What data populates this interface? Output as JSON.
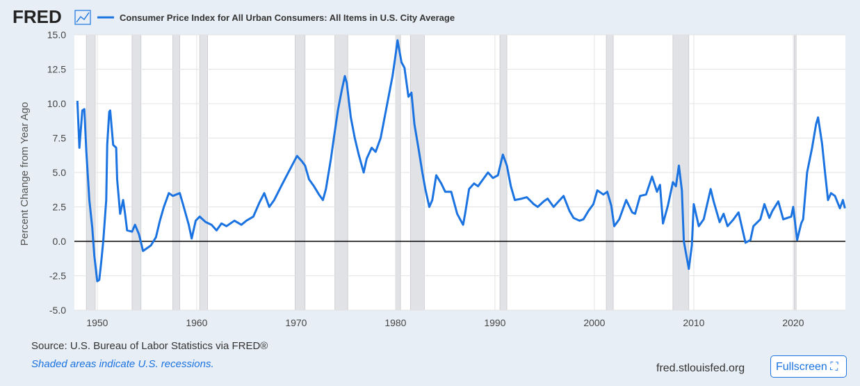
{
  "chart_data": {
    "type": "line",
    "brand": "FRED",
    "title": "Consumer Price Index for All Urban Consumers: All Items in U.S. City Average",
    "y_label": "Percent Change from Year Ago",
    "source": "Source: U.S. Bureau of Labor Statistics via FRED®",
    "note": "Shaded areas indicate U.S. recessions.",
    "site": "fred.stlouisfed.org",
    "button": "Fullscreen",
    "grid": true,
    "xlim": [
      1947.7,
      2025.25
    ],
    "ylim": [
      -5,
      15
    ],
    "xticks": [
      1950,
      1960,
      1970,
      1980,
      1990,
      2000,
      2010,
      2020
    ],
    "yticks": [
      {
        "value": -5,
        "label": "-5.0"
      },
      {
        "value": -2.5,
        "label": "-2.5"
      },
      {
        "value": 0,
        "label": "0.0"
      },
      {
        "value": 2.5,
        "label": "2.5"
      },
      {
        "value": 5,
        "label": "5.0"
      },
      {
        "value": 7.5,
        "label": "7.5"
      },
      {
        "value": 10,
        "label": "10.0"
      },
      {
        "value": 12.5,
        "label": "12.5"
      },
      {
        "value": 15,
        "label": "15.0"
      }
    ],
    "recessions": [
      [
        1948.9,
        1949.8
      ],
      [
        1953.5,
        1954.4
      ],
      [
        1957.6,
        1958.3
      ],
      [
        1960.3,
        1961.1
      ],
      [
        1969.9,
        1970.9
      ],
      [
        1973.9,
        1975.2
      ],
      [
        1980.0,
        1980.5
      ],
      [
        1981.5,
        1982.9
      ],
      [
        1990.5,
        1991.2
      ],
      [
        2001.2,
        2001.9
      ],
      [
        2007.9,
        2009.5
      ],
      [
        2020.1,
        2020.3
      ]
    ],
    "x": [
      1948.0,
      1948.2,
      1948.5,
      1948.7,
      1948.9,
      1949.2,
      1949.5,
      1949.7,
      1950.0,
      1950.2,
      1950.4,
      1950.6,
      1950.9,
      1951.0,
      1951.2,
      1951.3,
      1951.6,
      1951.9,
      1952.0,
      1952.3,
      1952.6,
      1952.8,
      1953.0,
      1953.5,
      1953.8,
      1954.2,
      1954.6,
      1955.0,
      1955.4,
      1955.9,
      1956.3,
      1956.7,
      1957.2,
      1957.6,
      1958.3,
      1958.7,
      1959.2,
      1959.5,
      1959.9,
      1960.3,
      1960.9,
      1961.5,
      1962.0,
      1962.5,
      1963.0,
      1963.8,
      1964.5,
      1965.0,
      1965.7,
      1966.3,
      1966.8,
      1967.3,
      1967.8,
      1968.5,
      1969.0,
      1969.8,
      1970.1,
      1970.6,
      1970.9,
      1971.3,
      1971.8,
      1972.3,
      1972.7,
      1973.0,
      1973.5,
      1973.8,
      1974.2,
      1974.6,
      1974.9,
      1975.1,
      1975.5,
      1975.9,
      1976.3,
      1976.8,
      1977.1,
      1977.6,
      1978.0,
      1978.5,
      1978.9,
      1979.3,
      1979.7,
      1980.0,
      1980.2,
      1980.6,
      1980.9,
      1981.3,
      1981.6,
      1981.9,
      1982.3,
      1982.7,
      1983.0,
      1983.4,
      1983.7,
      1984.1,
      1984.6,
      1985.0,
      1985.6,
      1986.2,
      1986.8,
      1987.0,
      1987.4,
      1987.9,
      1988.3,
      1988.9,
      1989.3,
      1989.8,
      1990.3,
      1990.8,
      1991.2,
      1991.6,
      1992.0,
      1992.7,
      1993.2,
      1993.9,
      1994.3,
      1994.9,
      1995.3,
      1995.9,
      1996.4,
      1996.9,
      1997.5,
      1997.9,
      1998.5,
      1998.9,
      1999.4,
      1999.9,
      2000.3,
      2000.9,
      2001.3,
      2001.7,
      2002.0,
      2002.5,
      2002.9,
      2003.2,
      2003.8,
      2004.1,
      2004.6,
      2005.2,
      2005.8,
      2006.3,
      2006.6,
      2006.9,
      2007.4,
      2007.9,
      2008.2,
      2008.5,
      2008.8,
      2009.0,
      2009.5,
      2009.8,
      2010.0,
      2010.5,
      2011.0,
      2011.7,
      2012.0,
      2012.6,
      2013.0,
      2013.4,
      2014.0,
      2014.5,
      2015.2,
      2015.7,
      2016.0,
      2016.7,
      2017.1,
      2017.6,
      2017.9,
      2018.5,
      2019.0,
      2019.8,
      2020.0,
      2020.4,
      2020.8,
      2021.0,
      2021.4,
      2021.9,
      2022.3,
      2022.5,
      2022.9,
      2023.2,
      2023.5,
      2023.8,
      2024.2,
      2024.7,
      2025.0,
      2025.2
    ],
    "series": [
      {
        "name": "Consumer Price Index for All Urban Consumers: All Items in U.S. City Average",
        "color": "#1a73e0",
        "values": [
          10.2,
          6.8,
          9.5,
          9.6,
          6.5,
          3,
          1,
          -1,
          -2.9,
          -2.8,
          -1.5,
          0,
          3,
          7,
          9.4,
          9.5,
          7,
          6.8,
          4.5,
          2.0,
          3.0,
          2.0,
          0.8,
          0.7,
          1.2,
          0.5,
          -0.7,
          -0.5,
          -0.3,
          0.3,
          1.5,
          2.5,
          3.5,
          3.3,
          3.5,
          2.5,
          1.2,
          0.2,
          1.5,
          1.8,
          1.4,
          1.2,
          0.8,
          1.3,
          1.1,
          1.5,
          1.2,
          1.5,
          1.8,
          2.8,
          3.5,
          2.5,
          3.0,
          4.0,
          4.7,
          5.8,
          6.2,
          5.8,
          5.5,
          4.5,
          4.0,
          3.4,
          3.0,
          3.8,
          6.0,
          7.5,
          9.5,
          11.0,
          12.0,
          11.5,
          9.0,
          7.5,
          6.3,
          5.0,
          6.0,
          6.8,
          6.5,
          7.5,
          9.0,
          10.5,
          12.0,
          13.5,
          14.6,
          13.0,
          12.6,
          10.5,
          10.8,
          8.5,
          6.8,
          5.0,
          3.8,
          2.5,
          3.0,
          4.8,
          4.2,
          3.6,
          3.6,
          2.0,
          1.2,
          2.0,
          3.8,
          4.2,
          4.0,
          4.6,
          5.0,
          4.6,
          4.8,
          6.3,
          5.5,
          4.0,
          3.0,
          3.1,
          3.2,
          2.7,
          2.5,
          2.9,
          3.1,
          2.5,
          2.9,
          3.3,
          2.2,
          1.7,
          1.5,
          1.6,
          2.2,
          2.7,
          3.7,
          3.4,
          3.6,
          2.6,
          1.1,
          1.6,
          2.4,
          3.0,
          2.1,
          2.0,
          3.3,
          3.4,
          4.7,
          3.6,
          4.1,
          1.3,
          2.6,
          4.3,
          4.0,
          5.5,
          3.7,
          0.0,
          -2.0,
          -0.3,
          2.7,
          1.1,
          1.6,
          3.8,
          2.9,
          1.4,
          2.0,
          1.1,
          1.6,
          2.1,
          -0.1,
          0.1,
          1.1,
          1.6,
          2.7,
          1.7,
          2.2,
          2.9,
          1.6,
          1.8,
          2.5,
          0.1,
          1.3,
          1.6,
          5.0,
          6.8,
          8.5,
          9.0,
          7.1,
          5.0,
          3.0,
          3.5,
          3.3,
          2.4,
          3.0,
          2.4
        ]
      }
    ]
  }
}
